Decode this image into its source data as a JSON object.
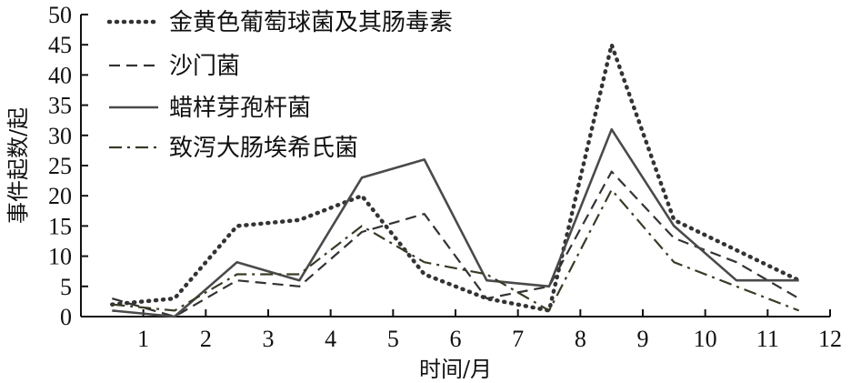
{
  "chart_data": {
    "type": "line",
    "xlabel": "时间/月",
    "ylabel": "事件起数/起",
    "xlim": [
      0,
      12
    ],
    "ylim": [
      0,
      50
    ],
    "xticks": [
      "1",
      "2",
      "3",
      "4",
      "5",
      "6",
      "7",
      "8",
      "9",
      "10",
      "11",
      "12"
    ],
    "yticks": [
      "0",
      "5",
      "10",
      "15",
      "20",
      "25",
      "30",
      "35",
      "40",
      "45",
      "50"
    ],
    "grid": false,
    "legend_position": "top-left",
    "series": [
      {
        "name": "金黄色葡萄球菌及其肠毒素",
        "style": "dotted",
        "color": "#333333",
        "x": [
          0.5,
          1.5,
          2.5,
          3.5,
          4.5,
          5.5,
          6.5,
          7.5,
          8.5,
          9.5,
          10.5,
          11.5
        ],
        "y": [
          2,
          3,
          15,
          16,
          20,
          7,
          3,
          1,
          45,
          16,
          11,
          6
        ]
      },
      {
        "name": "沙门菌",
        "style": "dashed",
        "color": "#333333",
        "x": [
          0.5,
          1.5,
          2.5,
          3.5,
          4.5,
          5.5,
          6.5,
          7.5,
          8.5,
          9.5,
          10.5,
          11.5
        ],
        "y": [
          3,
          0,
          6,
          5,
          14,
          17,
          3,
          5,
          24,
          13,
          9,
          3
        ]
      },
      {
        "name": "蜡样芽孢杆菌",
        "style": "solid",
        "color": "#4a4a4a",
        "x": [
          0.5,
          1.5,
          2.5,
          3.5,
          4.5,
          5.5,
          6.5,
          7.5,
          8.5,
          9.5,
          10.5,
          11.5
        ],
        "y": [
          1,
          0,
          9,
          6,
          23,
          26,
          6,
          5,
          31,
          15,
          6,
          6
        ]
      },
      {
        "name": "致泻大肠埃希氏菌",
        "style": "dashdot",
        "color": "#3a3a26",
        "x": [
          0.5,
          1.5,
          2.5,
          3.5,
          4.5,
          5.5,
          6.5,
          7.5,
          8.5,
          9.5,
          10.5,
          11.5
        ],
        "y": [
          2,
          1,
          7,
          7,
          15,
          9,
          7,
          1,
          21,
          9,
          5,
          1
        ]
      }
    ]
  }
}
